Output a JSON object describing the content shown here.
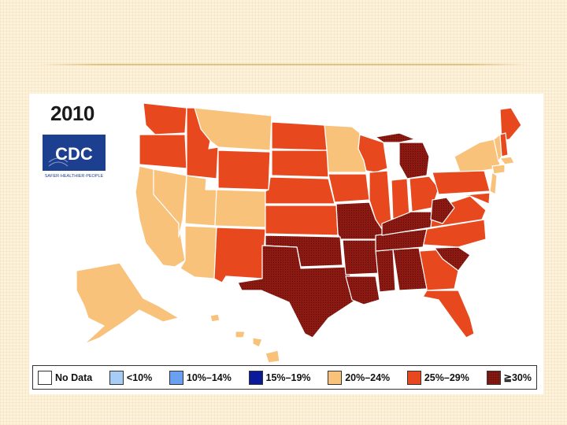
{
  "map": {
    "year": "2010",
    "logo_text": "CDC",
    "logo_tagline": "SAFER·HEALTHIER·PEOPLE"
  },
  "legend": [
    {
      "label": "No Data",
      "color": "#ffffff",
      "pattern": "none"
    },
    {
      "label": "<10%",
      "color": "#a8cdf5",
      "pattern": "none"
    },
    {
      "label": "10%–14%",
      "color": "#6aa0ee",
      "pattern": "none"
    },
    {
      "label": "15%–19%",
      "color": "#0a1a9a",
      "pattern": "none"
    },
    {
      "label": "20%–24%",
      "color": "#f8c27a",
      "pattern": "none"
    },
    {
      "label": "25%–29%",
      "color": "#e8481e",
      "pattern": "none"
    },
    {
      "label": "≧30%",
      "color": "#8c1a12",
      "pattern": "dotted"
    }
  ]
}
